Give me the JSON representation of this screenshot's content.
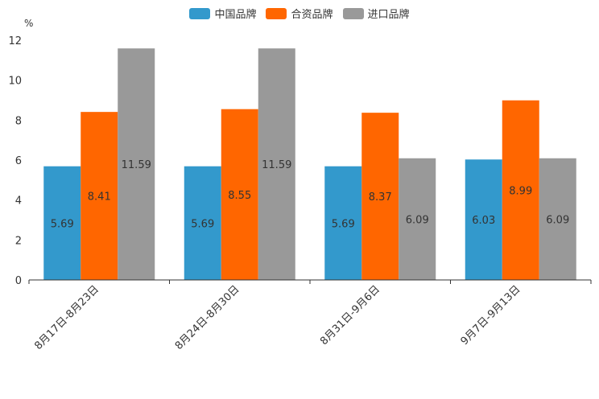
{
  "chart_data": {
    "type": "bar",
    "title": "",
    "ylabel": "%",
    "xlabel": "",
    "ylim": [
      0,
      12
    ],
    "yticks": [
      0,
      2,
      4,
      6,
      8,
      10,
      12
    ],
    "categories": [
      "8月17日-8月23日",
      "8月24日-8月30日",
      "8月31日-9月6日",
      "9月7日-9月13日"
    ],
    "series": [
      {
        "name": "中国品牌",
        "color": "#3399CC",
        "values": [
          5.69,
          5.69,
          5.69,
          6.03
        ]
      },
      {
        "name": "合资品牌",
        "color": "#FF6600",
        "values": [
          8.41,
          8.55,
          8.37,
          8.99
        ]
      },
      {
        "name": "进口品牌",
        "color": "#999999",
        "values": [
          11.59,
          11.59,
          6.09,
          6.09
        ]
      }
    ],
    "legend_position": "top-center"
  }
}
